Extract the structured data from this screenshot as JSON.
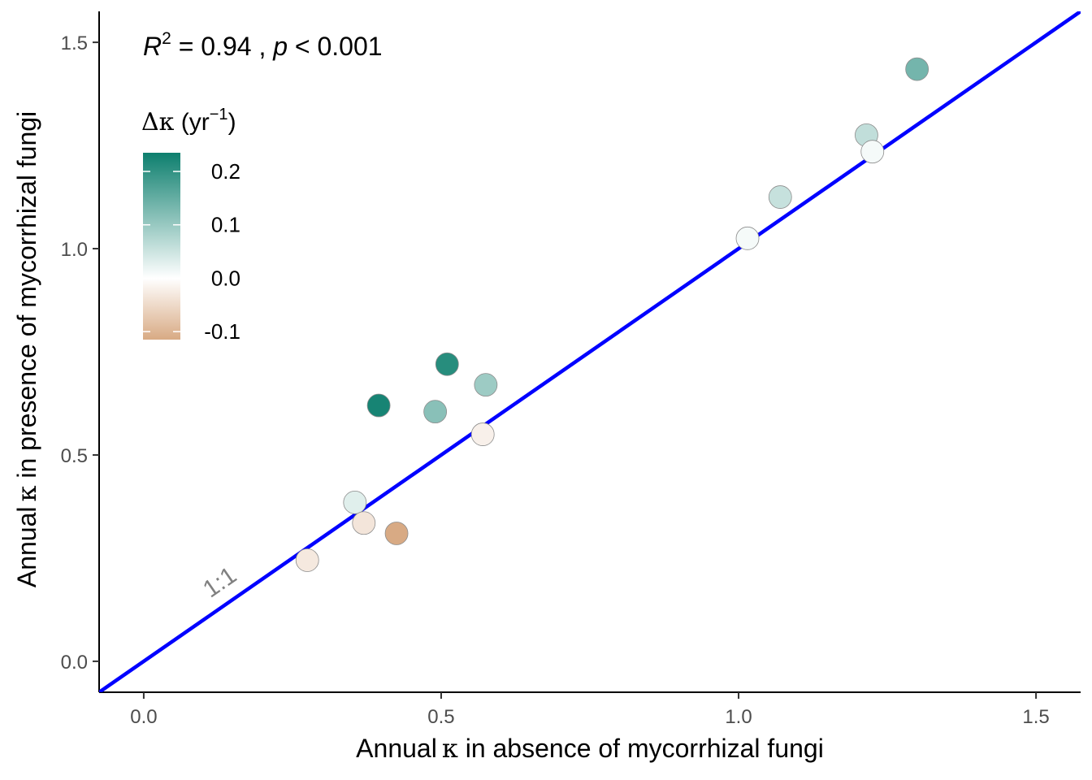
{
  "chart_data": {
    "type": "scatter",
    "title": "",
    "xlabel_pre": "Annual",
    "xlabel_symbol": "κ",
    "xlabel_post": " in absence of mycorrhizal fungi",
    "ylabel_pre": "Annual",
    "ylabel_symbol": "κ",
    "ylabel_post": " in presence of mycorrhizal fungi",
    "xlim": [
      -0.075,
      1.575
    ],
    "ylim": [
      -0.075,
      1.575
    ],
    "x_ticks": [
      0.0,
      0.5,
      1.0,
      1.5
    ],
    "x_tick_labels": [
      "0.0",
      "0.5",
      "1.0",
      "1.5"
    ],
    "y_ticks": [
      0.0,
      0.5,
      1.0,
      1.5
    ],
    "y_tick_labels": [
      "0.0",
      "0.5",
      "1.0",
      "1.5"
    ],
    "grid": false,
    "reference_line": {
      "slope": 1,
      "intercept": 0,
      "color": "#0000ff",
      "label": "1:1"
    },
    "annotation": {
      "r_symbol": "R",
      "r_exp": "2",
      "r_value": " = 0.94 , ",
      "p_symbol": "p",
      "p_value": " < 0.001"
    },
    "legend": {
      "title_symbol": "Δκ",
      "title_unit_pre": " (yr",
      "title_unit_exp": "−1",
      "title_unit_post": ")",
      "placement": "top-left",
      "range": [
        -0.115,
        0.235
      ],
      "breaks": [
        0.2,
        0.1,
        0.0,
        -0.1
      ],
      "break_labels": [
        "0.2",
        "0.1",
        "0.0",
        "-0.1"
      ],
      "low_color": "#d8aa84",
      "mid_color": "#ffffff",
      "high_color": "#0d7f6e"
    },
    "points": [
      {
        "x": 0.275,
        "y": 0.245,
        "delta": -0.03
      },
      {
        "x": 0.355,
        "y": 0.385,
        "delta": 0.03
      },
      {
        "x": 0.37,
        "y": 0.335,
        "delta": -0.035
      },
      {
        "x": 0.425,
        "y": 0.31,
        "delta": -0.115
      },
      {
        "x": 0.395,
        "y": 0.62,
        "delta": 0.225
      },
      {
        "x": 0.49,
        "y": 0.605,
        "delta": 0.115
      },
      {
        "x": 0.51,
        "y": 0.72,
        "delta": 0.21
      },
      {
        "x": 0.57,
        "y": 0.55,
        "delta": -0.02
      },
      {
        "x": 0.575,
        "y": 0.67,
        "delta": 0.095
      },
      {
        "x": 1.015,
        "y": 1.025,
        "delta": 0.01
      },
      {
        "x": 1.07,
        "y": 1.125,
        "delta": 0.055
      },
      {
        "x": 1.215,
        "y": 1.275,
        "delta": 0.06
      },
      {
        "x": 1.225,
        "y": 1.235,
        "delta": 0.01
      },
      {
        "x": 1.3,
        "y": 1.435,
        "delta": 0.135
      }
    ]
  }
}
